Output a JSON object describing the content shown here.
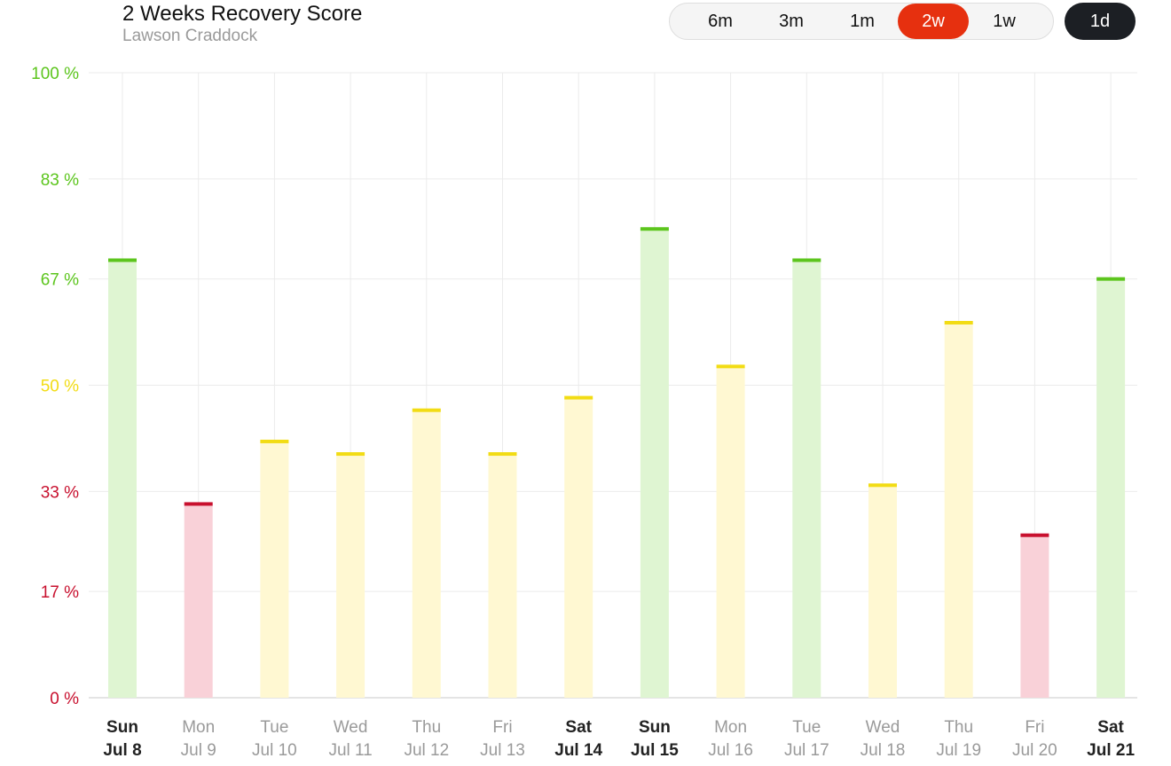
{
  "header": {
    "title": "2 Weeks Recovery Score",
    "subtitle": "Lawson Craddock"
  },
  "range_selector": {
    "options": [
      "6m",
      "3m",
      "1m",
      "2w",
      "1w"
    ],
    "selected": "2w",
    "day_button": "1d"
  },
  "colors": {
    "green": "#5cc51d",
    "green_fill": "#dff5d2",
    "yellow": "#f2dc14",
    "yellow_fill": "#fff8d2",
    "red": "#c8102e",
    "red_fill": "#f9d1d8",
    "accent": "#e6300f",
    "gridline": "#ebebeb"
  },
  "chart_data": {
    "type": "bar",
    "title": "2 Weeks Recovery Score",
    "subtitle": "Lawson Craddock",
    "categories": [
      {
        "weekday": "Sun",
        "date": "Jul 8",
        "bold": true
      },
      {
        "weekday": "Mon",
        "date": "Jul 9",
        "bold": false
      },
      {
        "weekday": "Tue",
        "date": "Jul 10",
        "bold": false
      },
      {
        "weekday": "Wed",
        "date": "Jul 11",
        "bold": false
      },
      {
        "weekday": "Thu",
        "date": "Jul 12",
        "bold": false
      },
      {
        "weekday": "Fri",
        "date": "Jul 13",
        "bold": false
      },
      {
        "weekday": "Sat",
        "date": "Jul 14",
        "bold": true
      },
      {
        "weekday": "Sun",
        "date": "Jul 15",
        "bold": true
      },
      {
        "weekday": "Mon",
        "date": "Jul 16",
        "bold": false
      },
      {
        "weekday": "Tue",
        "date": "Jul 17",
        "bold": false
      },
      {
        "weekday": "Wed",
        "date": "Jul 18",
        "bold": false
      },
      {
        "weekday": "Thu",
        "date": "Jul 19",
        "bold": false
      },
      {
        "weekday": "Fri",
        "date": "Jul 20",
        "bold": false
      },
      {
        "weekday": "Sat",
        "date": "Jul 21",
        "bold": true
      }
    ],
    "values": [
      70,
      31,
      41,
      39,
      46,
      39,
      48,
      75,
      53,
      70,
      34,
      60,
      26,
      67
    ],
    "value_colors": [
      "green",
      "red",
      "yellow",
      "yellow",
      "yellow",
      "yellow",
      "yellow",
      "green",
      "yellow",
      "green",
      "yellow",
      "yellow",
      "red",
      "green"
    ],
    "y_ticks": [
      {
        "value": 100,
        "label": "100 %",
        "color": "green"
      },
      {
        "value": 83,
        "label": "83 %",
        "color": "green"
      },
      {
        "value": 67,
        "label": "67 %",
        "color": "green"
      },
      {
        "value": 50,
        "label": "50 %",
        "color": "yellow"
      },
      {
        "value": 33,
        "label": "33 %",
        "color": "red"
      },
      {
        "value": 17,
        "label": "17 %",
        "color": "red"
      },
      {
        "value": 0,
        "label": "0 %",
        "color": "red"
      }
    ],
    "ylim": [
      0,
      100
    ],
    "grid": true,
    "xlabel": "",
    "ylabel": ""
  }
}
